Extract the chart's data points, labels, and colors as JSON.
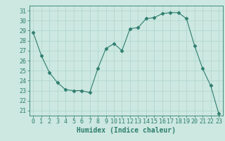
{
  "x": [
    0,
    1,
    2,
    3,
    4,
    5,
    6,
    7,
    8,
    9,
    10,
    11,
    12,
    13,
    14,
    15,
    16,
    17,
    18,
    19,
    20,
    21,
    22,
    23
  ],
  "y": [
    28.8,
    26.5,
    24.8,
    23.8,
    23.1,
    23.0,
    23.0,
    22.8,
    25.2,
    27.2,
    27.7,
    27.0,
    29.2,
    29.3,
    30.2,
    30.3,
    30.7,
    30.8,
    30.8,
    30.2,
    27.5,
    25.2,
    23.5,
    20.7
  ],
  "line_color": "#2e7d6e",
  "marker": "D",
  "marker_size": 2.5,
  "bg_color": "#cce8e0",
  "grid_color": "#aed4cc",
  "xlabel": "Humidex (Indice chaleur)",
  "ylim": [
    20.5,
    31.5
  ],
  "xlim": [
    -0.5,
    23.5
  ],
  "yticks": [
    21,
    22,
    23,
    24,
    25,
    26,
    27,
    28,
    29,
    30,
    31
  ],
  "xticks": [
    0,
    1,
    2,
    3,
    4,
    5,
    6,
    7,
    8,
    9,
    10,
    11,
    12,
    13,
    14,
    15,
    16,
    17,
    18,
    19,
    20,
    21,
    22,
    23
  ],
  "tick_color": "#2e7d6e",
  "label_color": "#2e7d6e",
  "xlabel_fontsize": 7,
  "tick_fontsize": 6
}
